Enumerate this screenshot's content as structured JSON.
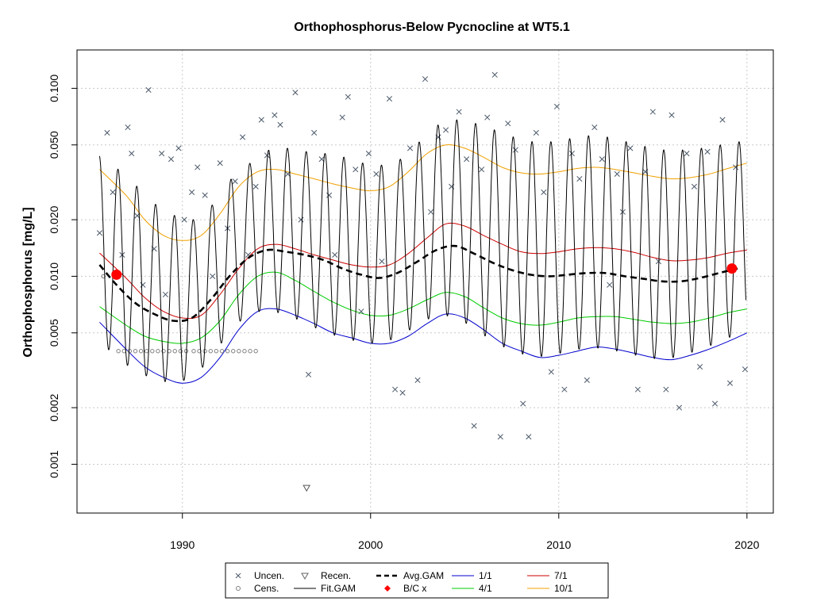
{
  "chart_data": {
    "type": "scatter",
    "title": "Orthophosphorus-Below Pycnocline at WT5.1",
    "ylabel": "Orthophosphorus [mg/L]",
    "xlabel": "",
    "y_scale": "log",
    "xlim": [
      1984.4,
      2021.4
    ],
    "ylim": [
      0.00055,
      0.16
    ],
    "x_ticks": [
      1990,
      2000,
      2010,
      2020
    ],
    "x_tick_labels": [
      "1990",
      "2000",
      "2010",
      "2020"
    ],
    "y_ticks": [
      0.001,
      0.002,
      0.005,
      0.01,
      0.02,
      0.05,
      0.1
    ],
    "y_tick_labels": [
      "0.001",
      "0.002",
      "0.005",
      "0.010",
      "0.020",
      "0.050",
      "0.100"
    ],
    "grid": true,
    "legend_placement": "bottom-center",
    "legend": [
      {
        "label": "Uncen.",
        "marker": "x",
        "color": "#4d5a6b"
      },
      {
        "label": "Cens.",
        "marker": "circle",
        "color": "#808080"
      },
      {
        "label": "Recen.",
        "marker": "triangle-down",
        "color": "#666666"
      },
      {
        "label": "Fit.GAM",
        "marker": "line",
        "color": "#000000"
      },
      {
        "label": "Avg.GAM",
        "marker": "dashed-line",
        "color": "#000000"
      },
      {
        "label": "B/C x",
        "marker": "diamond",
        "color": "#ff0000"
      },
      {
        "label": "1/1",
        "marker": "line",
        "color": "#0000cd"
      },
      {
        "label": "4/1",
        "marker": "line",
        "color": "#00cc00"
      },
      {
        "label": "7/1",
        "marker": "line",
        "color": "#cc0000"
      },
      {
        "label": "10/1",
        "marker": "line",
        "color": "#f0a000"
      }
    ],
    "series": [
      {
        "name": "1/1",
        "color": "#0000cd",
        "x": [
          1985.6,
          1987,
          1988,
          1989,
          1990,
          1991,
          1992,
          1993,
          1994,
          1995,
          1996,
          1997,
          1998,
          1999,
          2000,
          2001,
          2002,
          2003,
          2004,
          2005,
          2006,
          2007,
          2008,
          2009,
          2010,
          2011,
          2012,
          2013,
          2014,
          2015,
          2016,
          2017,
          2018,
          2019,
          2020
        ],
        "y": [
          0.0057,
          0.0041,
          0.0033,
          0.0029,
          0.0027,
          0.0029,
          0.0037,
          0.0052,
          0.0065,
          0.0067,
          0.0062,
          0.0056,
          0.005,
          0.0047,
          0.0044,
          0.0044,
          0.0048,
          0.0056,
          0.0063,
          0.006,
          0.0052,
          0.0044,
          0.004,
          0.0037,
          0.0038,
          0.004,
          0.0042,
          0.0041,
          0.0039,
          0.0037,
          0.0036,
          0.0038,
          0.0041,
          0.0045,
          0.005
        ]
      },
      {
        "name": "4/1",
        "color": "#00cc00",
        "x": [
          1985.6,
          1987,
          1988,
          1989,
          1990,
          1991,
          1992,
          1993,
          1994,
          1995,
          1996,
          1997,
          1998,
          1999,
          2000,
          2001,
          2002,
          2003,
          2004,
          2005,
          2006,
          2007,
          2008,
          2009,
          2010,
          2011,
          2012,
          2013,
          2014,
          2015,
          2016,
          2017,
          2018,
          2019,
          2020
        ],
        "y": [
          0.0069,
          0.0055,
          0.0048,
          0.0045,
          0.0044,
          0.0047,
          0.0058,
          0.008,
          0.01,
          0.0105,
          0.0095,
          0.0083,
          0.0073,
          0.0066,
          0.0062,
          0.0062,
          0.0067,
          0.0075,
          0.0082,
          0.0078,
          0.0068,
          0.006,
          0.0056,
          0.0055,
          0.0057,
          0.006,
          0.0061,
          0.0061,
          0.0059,
          0.0057,
          0.0056,
          0.0057,
          0.006,
          0.0064,
          0.0067
        ]
      },
      {
        "name": "7/1",
        "color": "#cc0000",
        "x": [
          1985.6,
          1987,
          1988,
          1989,
          1990,
          1991,
          1992,
          1993,
          1994,
          1995,
          1996,
          1997,
          1998,
          1999,
          2000,
          2001,
          2002,
          2003,
          2004,
          2005,
          2006,
          2007,
          2008,
          2009,
          2010,
          2011,
          2012,
          2013,
          2014,
          2015,
          2016,
          2017,
          2018,
          2019,
          2020
        ],
        "y": [
          0.0133,
          0.0098,
          0.0077,
          0.0065,
          0.006,
          0.0062,
          0.008,
          0.011,
          0.014,
          0.0148,
          0.014,
          0.013,
          0.0122,
          0.0115,
          0.0112,
          0.0115,
          0.0132,
          0.016,
          0.019,
          0.0185,
          0.0165,
          0.0148,
          0.0135,
          0.0132,
          0.0135,
          0.014,
          0.0142,
          0.014,
          0.0134,
          0.0126,
          0.0121,
          0.0122,
          0.0126,
          0.0133,
          0.0138
        ]
      },
      {
        "name": "10/1",
        "color": "#f0a000",
        "x": [
          1985.6,
          1987,
          1988,
          1989,
          1990,
          1991,
          1992,
          1993,
          1994,
          1995,
          1996,
          1997,
          1998,
          1999,
          2000,
          2001,
          2002,
          2003,
          2004,
          2005,
          2006,
          2007,
          2008,
          2009,
          2010,
          2011,
          2012,
          2013,
          2014,
          2015,
          2016,
          2017,
          2018,
          2019,
          2020
        ],
        "y": [
          0.037,
          0.027,
          0.02,
          0.0165,
          0.0155,
          0.0165,
          0.0215,
          0.03,
          0.036,
          0.037,
          0.035,
          0.033,
          0.031,
          0.0295,
          0.0285,
          0.03,
          0.036,
          0.045,
          0.05,
          0.048,
          0.043,
          0.038,
          0.0355,
          0.035,
          0.036,
          0.0375,
          0.038,
          0.037,
          0.0355,
          0.034,
          0.033,
          0.0335,
          0.035,
          0.0375,
          0.04
        ]
      },
      {
        "name": "Avg.GAM",
        "color": "#000000",
        "dash": true,
        "x": [
          1985.6,
          1986.5,
          1987.5,
          1988.5,
          1989.5,
          1990.5,
          1991.5,
          1992.5,
          1993.5,
          1994.5,
          1995.5,
          1996.5,
          1997.5,
          1998.5,
          1999.5,
          2000.5,
          2001.5,
          2002.5,
          2003.5,
          2004.5,
          2005.5,
          2006.5,
          2007.5,
          2008.5,
          2009.5,
          2010.5,
          2011.5,
          2012.5,
          2013.5,
          2014.5,
          2015.5,
          2016.5,
          2017.5,
          2018.5,
          2019.5
        ],
        "y": [
          0.0115,
          0.009,
          0.0072,
          0.0063,
          0.0058,
          0.006,
          0.0075,
          0.01,
          0.0125,
          0.0138,
          0.0135,
          0.013,
          0.0122,
          0.011,
          0.0102,
          0.0098,
          0.0105,
          0.012,
          0.0138,
          0.0145,
          0.0132,
          0.0118,
          0.0108,
          0.0102,
          0.01,
          0.0102,
          0.0104,
          0.0104,
          0.01,
          0.0097,
          0.0094,
          0.0094,
          0.0098,
          0.0104,
          0.011
        ]
      },
      {
        "name": "B/C x",
        "color": "#ff0000",
        "marker": "dot",
        "x": [
          1986.5,
          2019.2
        ],
        "y": [
          0.0102,
          0.011
        ]
      }
    ],
    "peaks": [
      0.044,
      0.037,
      0.03,
      0.024,
      0.021,
      0.02,
      0.024,
      0.033,
      0.04,
      0.047,
      0.048,
      0.046,
      0.045,
      0.043,
      0.04,
      0.039,
      0.042,
      0.052,
      0.064,
      0.068,
      0.065,
      0.06,
      0.055,
      0.052,
      0.052,
      0.054,
      0.056,
      0.055,
      0.052,
      0.049,
      0.047,
      0.047,
      0.048,
      0.05,
      0.052
    ],
    "troughs": [
      0.0045,
      0.0036,
      0.0031,
      0.0028,
      0.0027,
      0.0029,
      0.0037,
      0.0052,
      0.0064,
      0.0066,
      0.0062,
      0.0056,
      0.005,
      0.0047,
      0.0044,
      0.0044,
      0.0048,
      0.0056,
      0.0063,
      0.006,
      0.0052,
      0.0044,
      0.004,
      0.0037,
      0.0038,
      0.004,
      0.0042,
      0.0041,
      0.0039,
      0.0037,
      0.0036,
      0.0038,
      0.0041,
      0.0045,
      0.005
    ],
    "uncensored_points": [
      [
        1985.6,
        0.017
      ],
      [
        1986.0,
        0.058
      ],
      [
        1986.3,
        0.028
      ],
      [
        1986.8,
        0.013
      ],
      [
        1987.1,
        0.062
      ],
      [
        1987.3,
        0.045
      ],
      [
        1987.6,
        0.021
      ],
      [
        1987.9,
        0.009
      ],
      [
        1988.2,
        0.098
      ],
      [
        1988.5,
        0.014
      ],
      [
        1988.9,
        0.045
      ],
      [
        1989.1,
        0.008
      ],
      [
        1989.4,
        0.042
      ],
      [
        1989.8,
        0.048
      ],
      [
        1990.1,
        0.02
      ],
      [
        1990.5,
        0.028
      ],
      [
        1990.8,
        0.038
      ],
      [
        1991.2,
        0.027
      ],
      [
        1991.6,
        0.01
      ],
      [
        1992.0,
        0.04
      ],
      [
        1992.4,
        0.018
      ],
      [
        1992.8,
        0.032
      ],
      [
        1993.2,
        0.055
      ],
      [
        1993.5,
        0.013
      ],
      [
        1993.9,
        0.03
      ],
      [
        1994.2,
        0.068
      ],
      [
        1994.5,
        0.044
      ],
      [
        1994.9,
        0.072
      ],
      [
        1995.2,
        0.064
      ],
      [
        1995.6,
        0.035
      ],
      [
        1996.0,
        0.095
      ],
      [
        1996.3,
        0.02
      ],
      [
        1996.7,
        0.003
      ],
      [
        1997.0,
        0.058
      ],
      [
        1997.4,
        0.042
      ],
      [
        1997.8,
        0.027
      ],
      [
        1998.1,
        0.013
      ],
      [
        1998.5,
        0.07
      ],
      [
        1998.8,
        0.09
      ],
      [
        1999.2,
        0.037
      ],
      [
        1999.5,
        0.0065
      ],
      [
        1999.9,
        0.045
      ],
      [
        2000.3,
        0.035
      ],
      [
        2000.6,
        0.012
      ],
      [
        2001.0,
        0.088
      ],
      [
        2001.3,
        0.0025
      ],
      [
        2001.7,
        0.0024
      ],
      [
        2002.1,
        0.048
      ],
      [
        2002.5,
        0.0028
      ],
      [
        2002.9,
        0.112
      ],
      [
        2003.2,
        0.022
      ],
      [
        2003.6,
        0.055
      ],
      [
        2004.0,
        0.06
      ],
      [
        2004.3,
        0.03
      ],
      [
        2004.7,
        0.075
      ],
      [
        2005.1,
        0.042
      ],
      [
        2005.5,
        0.0016
      ],
      [
        2005.9,
        0.037
      ],
      [
        2006.2,
        0.07
      ],
      [
        2006.6,
        0.118
      ],
      [
        2006.9,
        0.0014
      ],
      [
        2007.3,
        0.065
      ],
      [
        2007.7,
        0.047
      ],
      [
        2008.1,
        0.0021
      ],
      [
        2008.4,
        0.0014
      ],
      [
        2008.8,
        0.058
      ],
      [
        2009.2,
        0.028
      ],
      [
        2009.6,
        0.0031
      ],
      [
        2009.9,
        0.08
      ],
      [
        2010.3,
        0.0025
      ],
      [
        2010.7,
        0.045
      ],
      [
        2011.1,
        0.033
      ],
      [
        2011.5,
        0.0028
      ],
      [
        2011.9,
        0.062
      ],
      [
        2012.3,
        0.042
      ],
      [
        2012.7,
        0.009
      ],
      [
        2013.1,
        0.035
      ],
      [
        2013.4,
        0.022
      ],
      [
        2013.8,
        0.048
      ],
      [
        2014.2,
        0.0025
      ],
      [
        2014.6,
        0.036
      ],
      [
        2015.0,
        0.075
      ],
      [
        2015.3,
        0.012
      ],
      [
        2015.7,
        0.0025
      ],
      [
        2016.0,
        0.072
      ],
      [
        2016.4,
        0.002
      ],
      [
        2016.8,
        0.045
      ],
      [
        2017.2,
        0.03
      ],
      [
        2017.5,
        0.0033
      ],
      [
        2017.9,
        0.046
      ],
      [
        2018.3,
        0.0021
      ],
      [
        2018.7,
        0.068
      ],
      [
        2019.1,
        0.0027
      ],
      [
        2019.4,
        0.038
      ],
      [
        2019.9,
        0.0032
      ]
    ],
    "censored_points": [
      [
        1985.8,
        0.01
      ],
      [
        1986.6,
        0.004
      ],
      [
        1986.9,
        0.004
      ],
      [
        1987.2,
        0.004
      ],
      [
        1987.5,
        0.004
      ],
      [
        1987.8,
        0.004
      ],
      [
        1988.1,
        0.004
      ],
      [
        1988.4,
        0.004
      ],
      [
        1988.7,
        0.004
      ],
      [
        1989.0,
        0.004
      ],
      [
        1989.3,
        0.004
      ],
      [
        1989.6,
        0.004
      ],
      [
        1989.9,
        0.004
      ],
      [
        1990.2,
        0.004
      ],
      [
        1990.6,
        0.004
      ],
      [
        1990.9,
        0.004
      ],
      [
        1991.2,
        0.004
      ],
      [
        1991.5,
        0.004
      ],
      [
        1991.8,
        0.004
      ],
      [
        1992.1,
        0.004
      ],
      [
        1992.4,
        0.004
      ],
      [
        1992.7,
        0.004
      ],
      [
        1993.0,
        0.004
      ],
      [
        1993.3,
        0.004
      ],
      [
        1993.6,
        0.004
      ],
      [
        1993.9,
        0.004
      ]
    ],
    "recensored_points": [
      [
        1996.6,
        0.00075
      ]
    ]
  }
}
